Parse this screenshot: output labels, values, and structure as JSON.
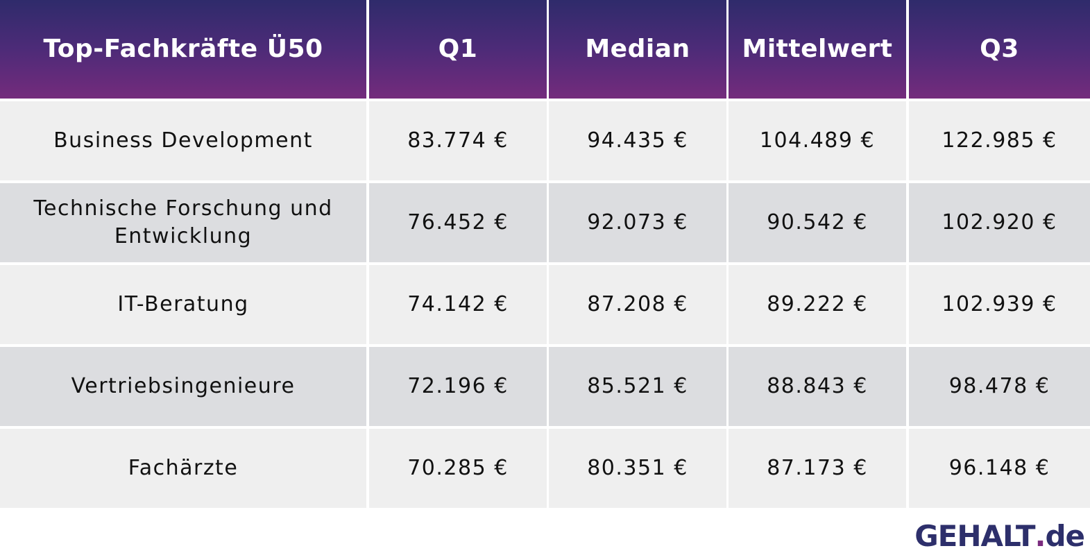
{
  "chart_data": {
    "type": "table",
    "columns": [
      "Top-Fachkräfte Ü50",
      "Q1",
      "Median",
      "Mittelwert",
      "Q3"
    ],
    "rows": [
      [
        "Business Development",
        "83.774 €",
        "94.435 €",
        "104.489 €",
        "122.985 €"
      ],
      [
        "Technische Forschung und Entwicklung",
        "76.452 €",
        "92.073 €",
        "90.542 €",
        "102.920 €"
      ],
      [
        "IT-Beratung",
        "74.142 €",
        "87.208 €",
        "89.222 €",
        "102.939 €"
      ],
      [
        "Vertriebsingenieure",
        "72.196 €",
        "85.521 €",
        "88.843 €",
        "98.478 €"
      ],
      [
        "Fachärzte",
        "70.285 €",
        "80.351 €",
        "87.173 €",
        "96.148 €"
      ]
    ],
    "header_gradient": [
      "#2f2b6b",
      "#742b7c"
    ],
    "row_colors": [
      "#efefef",
      "#dcdde0"
    ]
  },
  "logo": {
    "text_main": "GEHALT",
    "text_dot": ".",
    "text_tld": "de"
  }
}
